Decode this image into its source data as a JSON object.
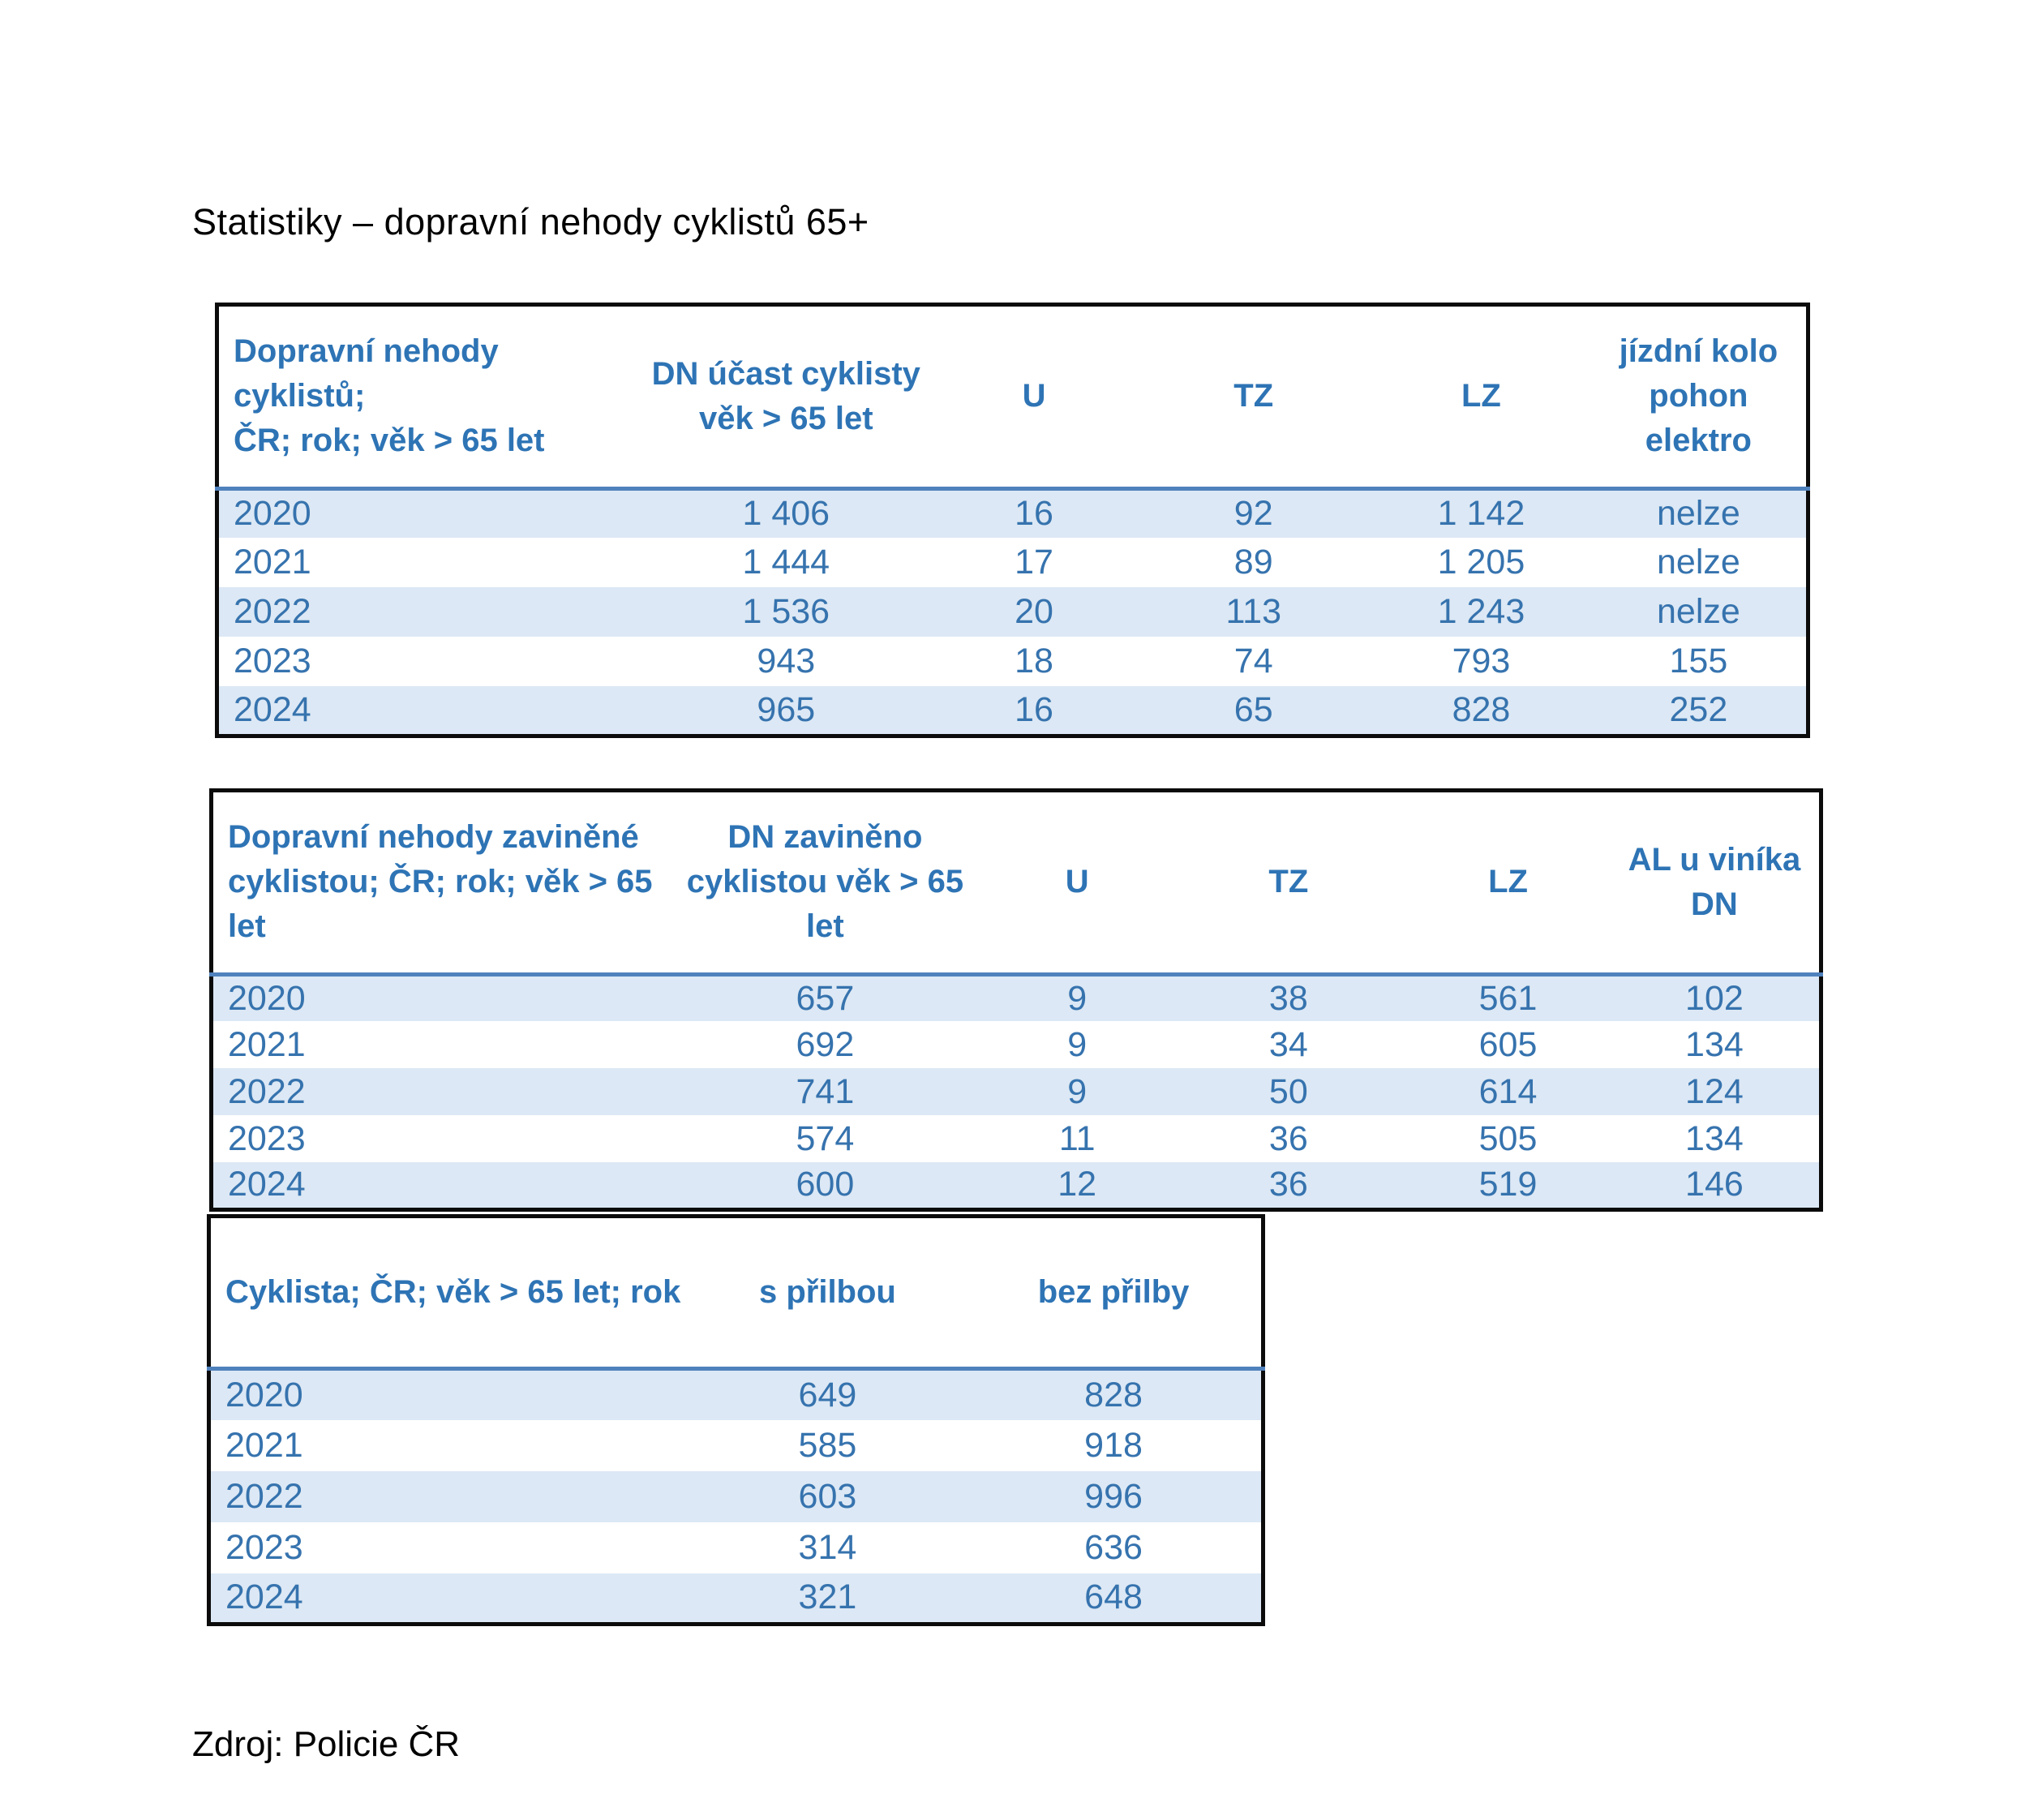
{
  "page": {
    "title": "Statistiky – dopravní nehody cyklistů 65+",
    "source": "Zdroj: Policie ČR"
  },
  "colors": {
    "table_text_blue": "#2e74b5",
    "row_band_blue": "#dce8f5",
    "header_rule_blue": "#4f81bd",
    "table_border": "#000000",
    "body_text": "#000000"
  },
  "tables": [
    {
      "name": "accidents-with-cyclist-participation",
      "columns": [
        "Dopravní nehody cyklistů;\nČR; rok; věk > 65 let",
        "DN účast cyklisty\nvěk > 65 let",
        "U",
        "TZ",
        "LZ",
        "jízdní kolo\npohon\nelektro"
      ],
      "rows": [
        [
          "2020",
          "1 406",
          "16",
          "92",
          "1 142",
          "nelze"
        ],
        [
          "2021",
          "1 444",
          "17",
          "89",
          "1 205",
          "nelze"
        ],
        [
          "2022",
          "1 536",
          "20",
          "113",
          "1 243",
          "nelze"
        ],
        [
          "2023",
          "943",
          "18",
          "74",
          "793",
          "155"
        ],
        [
          "2024",
          "965",
          "16",
          "65",
          "828",
          "252"
        ]
      ]
    },
    {
      "name": "accidents-caused-by-cyclist",
      "columns": [
        "Dopravní nehody zaviněné\ncyklistou; ČR; rok; věk > 65 let",
        "DN zaviněno\ncyklistou věk > 65\nlet",
        "U",
        "TZ",
        "LZ",
        "AL u viníka\nDN"
      ],
      "rows": [
        [
          "2020",
          "657",
          "9",
          "38",
          "561",
          "102"
        ],
        [
          "2021",
          "692",
          "9",
          "34",
          "605",
          "134"
        ],
        [
          "2022",
          "741",
          "9",
          "50",
          "614",
          "124"
        ],
        [
          "2023",
          "574",
          "11",
          "36",
          "505",
          "134"
        ],
        [
          "2024",
          "600",
          "12",
          "36",
          "519",
          "146"
        ]
      ]
    },
    {
      "name": "cyclist-helmet-use",
      "columns": [
        "Cyklista; ČR; věk > 65 let; rok",
        "s přilbou",
        "bez přilby"
      ],
      "rows": [
        [
          "2020",
          "649",
          "828"
        ],
        [
          "2021",
          "585",
          "918"
        ],
        [
          "2022",
          "603",
          "996"
        ],
        [
          "2023",
          "314",
          "636"
        ],
        [
          "2024",
          "321",
          "648"
        ]
      ]
    }
  ]
}
